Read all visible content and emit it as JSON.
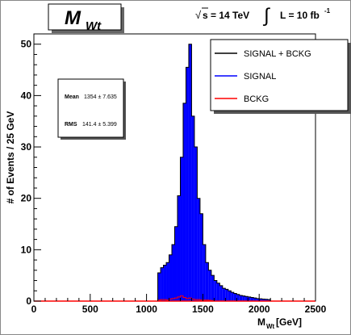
{
  "chart_data": {
    "type": "bar",
    "title": "M",
    "title_subscript": "Wt",
    "energy_label": "s = 14 TeV",
    "sqrt_symbol": "√",
    "lumi_integral": "∫",
    "lumi_label": "L = 10 fb",
    "lumi_exponent": "-1",
    "xlabel": "M",
    "xlabel_subscript": "Wt",
    "xlabel_unit": " [GeV]",
    "ylabel": "# of Events / 25 GeV",
    "xlim": [
      0,
      2500
    ],
    "ylim": [
      0,
      52
    ],
    "x_ticks": [
      "0",
      "500",
      "1000",
      "1500",
      "2000",
      "2500"
    ],
    "x_tick_values": [
      0,
      500,
      1000,
      1500,
      2000,
      2500
    ],
    "y_ticks": [
      "0",
      "10",
      "20",
      "30",
      "40",
      "50"
    ],
    "y_tick_values": [
      0,
      10,
      20,
      30,
      40,
      50
    ],
    "bin_width": 25,
    "series": [
      {
        "name": "SIGNAL + BCKG",
        "color": "#000000",
        "x_start": 1100,
        "values": [
          5.5,
          6.5,
          7,
          7.5,
          9,
          11,
          14.5,
          20.5,
          28,
          38.5,
          45.5,
          50,
          36,
          30,
          20,
          17,
          11,
          7.5,
          6,
          5,
          4,
          3.5,
          3,
          2.5,
          2.3,
          2,
          1.7,
          1.5,
          1.3,
          1.1,
          1,
          0.9,
          0.8,
          0.7,
          0.6,
          0.5,
          0.45,
          0.4,
          0.35,
          0.3
        ]
      },
      {
        "name": "SIGNAL",
        "color": "#0000ff",
        "x_start": 1100,
        "values": [
          5.5,
          6.5,
          7,
          7.5,
          9,
          11,
          14.5,
          20.5,
          28,
          38.5,
          45.5,
          50,
          36,
          30,
          20,
          17,
          11,
          7.5,
          6,
          5,
          4,
          3.5,
          3,
          2.5,
          2.3,
          2,
          1.7,
          1.5,
          1.3,
          1.1,
          1,
          0.9,
          0.8,
          0.7,
          0.6,
          0.5,
          0.45,
          0.4,
          0.35,
          0.3
        ]
      },
      {
        "name": "BCKG",
        "color": "#ff0000",
        "x_start": 1100,
        "values": [
          0.2,
          0.3,
          0.3,
          0.2,
          0.4,
          0.5,
          0.6,
          0.8,
          1.0,
          0.7,
          0.5,
          0.6,
          0.4,
          0.3,
          0.3,
          0.2,
          0.2,
          0.2,
          0.15,
          0.1
        ]
      }
    ],
    "stats": {
      "mean_label": "Mean",
      "mean_value": "1354 ± 7.635",
      "rms_label": "RMS",
      "rms_value": "141.4 ± 5.399"
    },
    "legend_position": "top-right"
  }
}
